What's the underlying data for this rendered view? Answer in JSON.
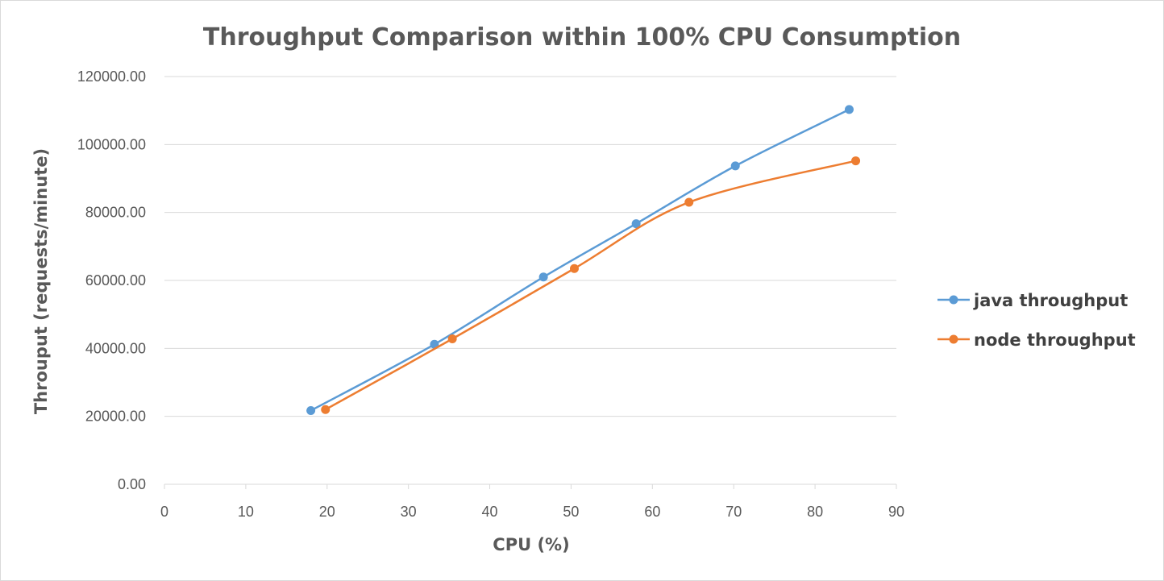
{
  "chart_data": {
    "type": "scatter",
    "title": "Throughput Comparison within 100% CPU Consumption",
    "xlabel": "CPU (%)",
    "ylabel": "Throuput (requests/minute)",
    "xlim": [
      0,
      90
    ],
    "ylim": [
      0,
      120000
    ],
    "x_ticks": [
      "0",
      "10",
      "20",
      "30",
      "40",
      "50",
      "60",
      "70",
      "80",
      "90"
    ],
    "y_ticks": [
      "0.00",
      "20000.00",
      "40000.00",
      "60000.00",
      "80000.00",
      "100000.00",
      "120000.00"
    ],
    "grid": "horizontal",
    "legend_position": "right",
    "series": [
      {
        "name": "java throughput",
        "color": "#5b9bd5",
        "points": [
          [
            18,
            21700
          ],
          [
            33.2,
            41200
          ],
          [
            46.6,
            61000
          ],
          [
            58,
            76700
          ],
          [
            70.2,
            93700
          ],
          [
            84.2,
            110300
          ]
        ]
      },
      {
        "name": "node throughput",
        "color": "#ed7d31",
        "points": [
          [
            19.8,
            22000
          ],
          [
            35.4,
            42800
          ],
          [
            50.4,
            63500
          ],
          [
            64.5,
            83000
          ],
          [
            85,
            95200
          ]
        ]
      }
    ]
  }
}
